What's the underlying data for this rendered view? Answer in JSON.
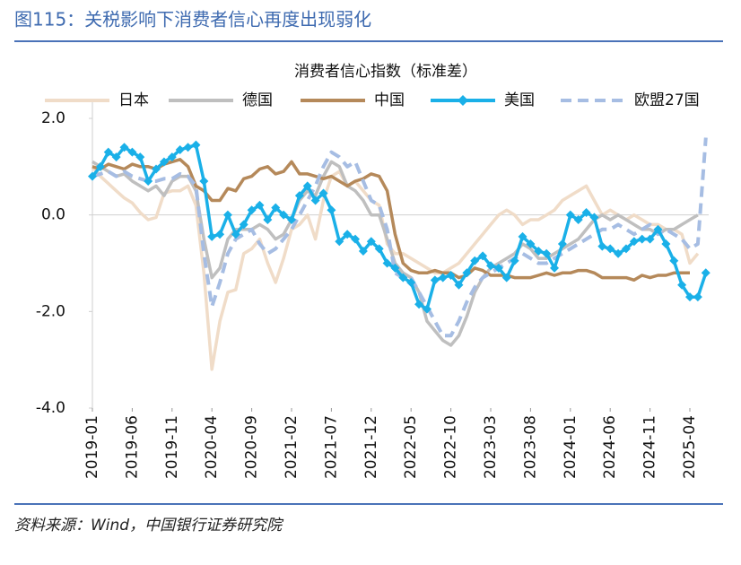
{
  "figure_title": "图115：关税影响下消费者信心再度出现弱化",
  "source": "资料来源：Wind，中国银行证券研究院",
  "chart_data": {
    "type": "line",
    "title": "消费者信心指数（标准差）",
    "categories": [
      "2019-01",
      null,
      null,
      null,
      null,
      "2019-06",
      null,
      null,
      null,
      null,
      "2019-11",
      null,
      null,
      null,
      null,
      "2020-04",
      null,
      null,
      null,
      null,
      "2020-09",
      null,
      null,
      null,
      null,
      "2021-02",
      null,
      null,
      null,
      null,
      "2021-07",
      null,
      null,
      null,
      null,
      "2021-12",
      null,
      null,
      null,
      null,
      "2022-05",
      null,
      null,
      null,
      null,
      "2022-10",
      null,
      null,
      null,
      null,
      "2023-03",
      null,
      null,
      null,
      null,
      "2023-08",
      null,
      null,
      null,
      null,
      "2024-01",
      null,
      null,
      null,
      null,
      "2024-06",
      null,
      null,
      null,
      null,
      "2024-11",
      null,
      null,
      null,
      null,
      "2025-04",
      null,
      null
    ],
    "ylim": [
      -4,
      2
    ],
    "yticks": [
      {
        "value": 2,
        "label": "2.0"
      },
      {
        "value": 0,
        "label": "0.0"
      },
      {
        "value": -2,
        "label": "-2.0"
      },
      {
        "value": -4,
        "label": "-4.0"
      }
    ],
    "zero_line": true,
    "legend": "top",
    "series": [
      {
        "name": "日本",
        "color": "#f0dcc8",
        "style": "solid",
        "values": [
          1.0,
          0.8,
          0.65,
          0.5,
          0.35,
          0.25,
          0.05,
          -0.1,
          -0.05,
          0.45,
          0.5,
          0.5,
          0.6,
          0.2,
          -1.2,
          -3.2,
          -2.2,
          -1.6,
          -1.55,
          -0.8,
          -0.7,
          -0.5,
          -1.0,
          -1.4,
          -0.9,
          -0.3,
          -0.2,
          0.0,
          -0.5,
          0.3,
          0.8,
          0.9,
          0.6,
          0.7,
          0.5,
          0.3,
          0.2,
          -0.6,
          -0.8,
          -0.8,
          -0.9,
          -1.0,
          -1.1,
          -1.2,
          -1.2,
          -1.1,
          -1.0,
          -0.8,
          -0.6,
          -0.4,
          -0.2,
          0.0,
          0.1,
          0.0,
          -0.2,
          -0.1,
          -0.1,
          0.0,
          0.1,
          0.3,
          0.4,
          0.5,
          0.6,
          0.3,
          0.0,
          0.1,
          0.0,
          -0.1,
          0.0,
          -0.1,
          -0.2,
          -0.2,
          -0.3,
          -0.3,
          -0.4,
          -1.0,
          -0.8,
          null
        ]
      },
      {
        "name": "德国",
        "color": "#bfbfbf",
        "style": "solid",
        "values": [
          1.1,
          1.0,
          0.9,
          0.8,
          0.85,
          0.7,
          0.6,
          0.5,
          0.6,
          0.4,
          0.7,
          0.8,
          0.8,
          0.5,
          -0.5,
          -1.3,
          -1.1,
          -0.5,
          -0.3,
          -0.3,
          -0.3,
          -0.2,
          -0.3,
          -0.5,
          -0.4,
          -0.1,
          0.3,
          0.5,
          0.4,
          0.8,
          1.1,
          1.0,
          0.6,
          0.5,
          0.3,
          0.0,
          0.0,
          -0.5,
          -1.0,
          -1.2,
          -1.3,
          -1.6,
          -2.2,
          -2.4,
          -2.6,
          -2.7,
          -2.5,
          -2.1,
          -1.6,
          -1.3,
          -1.1,
          -1.0,
          -0.9,
          -0.8,
          -0.6,
          -0.7,
          -0.9,
          -0.9,
          -0.8,
          -0.7,
          -0.6,
          -0.5,
          -0.3,
          -0.1,
          0.0,
          -0.1,
          0.0,
          -0.1,
          -0.2,
          -0.3,
          -0.3,
          -0.4,
          -0.3,
          -0.3,
          -0.2,
          -0.1,
          0.0,
          null
        ]
      },
      {
        "name": "中国",
        "color": "#b5895a",
        "style": "solid",
        "values": [
          1.0,
          0.95,
          1.05,
          1.0,
          0.95,
          1.05,
          1.0,
          1.0,
          0.95,
          1.05,
          1.1,
          1.15,
          1.0,
          0.6,
          0.5,
          0.3,
          0.3,
          0.55,
          0.5,
          0.75,
          0.8,
          0.95,
          1.0,
          0.85,
          0.9,
          1.1,
          0.85,
          0.85,
          0.8,
          0.75,
          0.8,
          0.7,
          0.6,
          0.7,
          0.75,
          0.85,
          0.8,
          0.5,
          -0.4,
          -1.0,
          -1.15,
          -1.2,
          -1.2,
          -1.15,
          -1.2,
          -1.2,
          -1.3,
          -1.25,
          -1.1,
          -1.15,
          -1.25,
          -1.25,
          -1.25,
          -1.3,
          -1.3,
          -1.3,
          -1.25,
          -1.2,
          -1.25,
          -1.2,
          -1.2,
          -1.15,
          -1.15,
          -1.2,
          -1.3,
          -1.3,
          -1.3,
          -1.3,
          -1.35,
          -1.25,
          -1.3,
          -1.25,
          -1.25,
          -1.2,
          -1.2,
          -1.2,
          null,
          null
        ]
      },
      {
        "name": "美国",
        "color": "#1ab0e8",
        "style": "solid",
        "marker": "diamond",
        "values": [
          0.8,
          1.0,
          1.3,
          1.2,
          1.4,
          1.3,
          1.2,
          0.7,
          0.95,
          1.1,
          1.2,
          1.35,
          1.4,
          1.45,
          0.7,
          -0.45,
          -0.4,
          0.0,
          -0.4,
          -0.2,
          0.1,
          0.2,
          -0.1,
          0.15,
          0.0,
          -0.1,
          0.4,
          0.6,
          0.3,
          0.45,
          0.1,
          -0.55,
          -0.4,
          -0.5,
          -0.75,
          -0.55,
          -0.7,
          -1.0,
          -1.1,
          -1.3,
          -1.4,
          -1.85,
          -1.95,
          -1.35,
          -1.3,
          -1.25,
          -1.45,
          -1.2,
          -0.95,
          -0.85,
          -1.05,
          -1.1,
          -1.3,
          -0.95,
          -0.45,
          -0.6,
          -0.75,
          -0.8,
          -1.1,
          -0.6,
          0.0,
          -0.1,
          0.05,
          -0.05,
          -0.65,
          -0.7,
          -0.8,
          -0.7,
          -0.55,
          -0.5,
          -0.5,
          -0.3,
          -0.6,
          -0.95,
          -1.45,
          -1.7,
          -1.7,
          -1.2
        ]
      },
      {
        "name": "欧盟27国",
        "color": "#a6bde3",
        "style": "dashed",
        "values": [
          0.8,
          0.85,
          0.9,
          0.8,
          0.9,
          0.8,
          0.75,
          0.7,
          0.7,
          0.75,
          0.75,
          0.85,
          0.8,
          0.6,
          -0.8,
          -1.9,
          -1.4,
          -0.8,
          -0.5,
          -0.4,
          -0.3,
          -0.6,
          -0.8,
          -0.7,
          -0.5,
          -0.3,
          0.0,
          0.3,
          0.6,
          1.0,
          1.3,
          1.2,
          1.0,
          1.1,
          0.7,
          0.3,
          0.2,
          -0.3,
          -1.2,
          -1.3,
          -1.3,
          -1.6,
          -1.9,
          -2.2,
          -2.5,
          -2.5,
          -2.2,
          -1.8,
          -1.5,
          -1.3,
          -1.2,
          -1.1,
          -1.0,
          -0.9,
          -0.8,
          -0.9,
          -1.0,
          -1.0,
          -0.9,
          -0.8,
          -0.7,
          -0.6,
          -0.5,
          -0.4,
          -0.3,
          -0.3,
          -0.2,
          -0.3,
          -0.4,
          -0.3,
          -0.2,
          -0.4,
          -0.3,
          -0.4,
          -0.5,
          -0.7,
          -0.6,
          1.6
        ]
      }
    ]
  }
}
